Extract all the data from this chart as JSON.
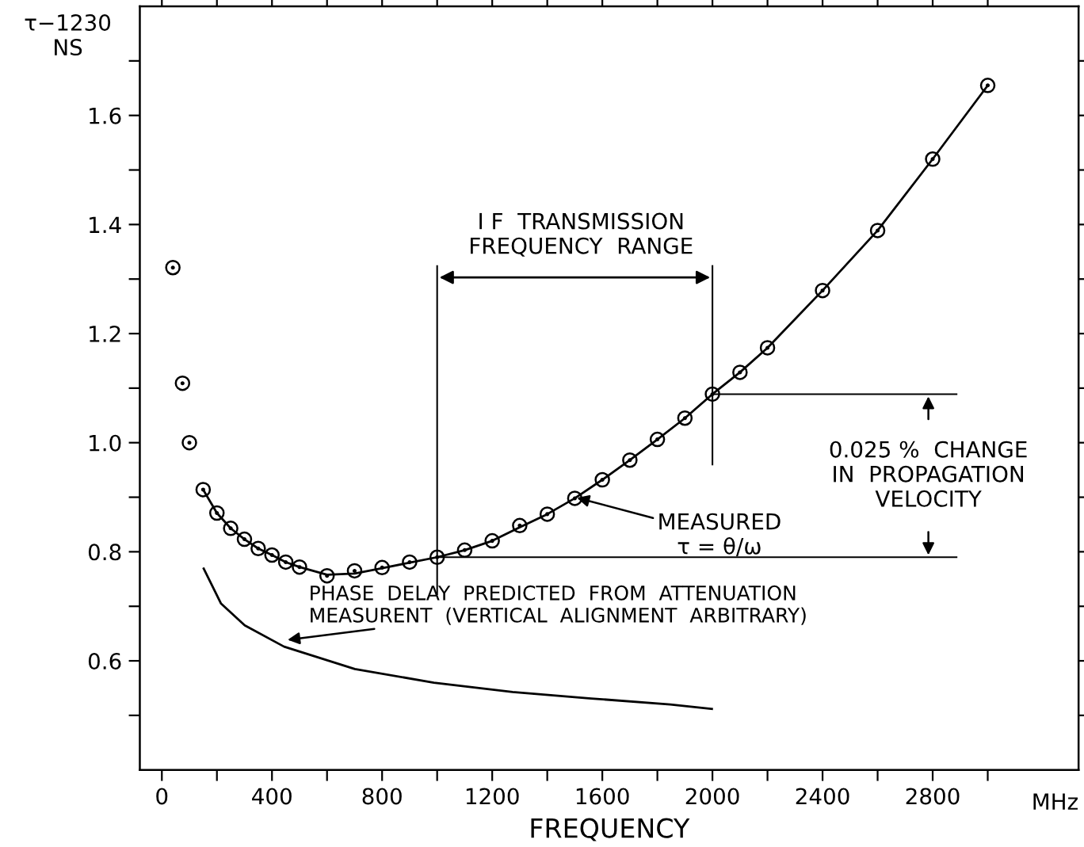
{
  "chart_data": {
    "type": "scatter",
    "xlabel": "FREQUENCY",
    "ylabel": "τ−1230\nNS",
    "xlim": [
      -80,
      3330
    ],
    "ylim": [
      0.4,
      1.8
    ],
    "xticks": [
      0,
      {
        "value": 200,
        "label": null
      },
      400,
      {
        "value": 600,
        "label": null
      },
      800,
      {
        "value": 1000,
        "label": null
      },
      1200,
      {
        "value": 1400,
        "label": null
      },
      1600,
      {
        "value": 1800,
        "label": null
      },
      2000,
      {
        "value": 2200,
        "label": null
      },
      2400,
      {
        "value": 2600,
        "label": null
      },
      2800,
      {
        "value": 3000,
        "label": null
      }
    ],
    "yticks": [
      {
        "value": 0.5,
        "label": null
      },
      0.6,
      {
        "value": 0.7,
        "label": null
      },
      0.8,
      {
        "value": 0.9,
        "label": null
      },
      {
        "value": 1.0,
        "label": "1.0"
      },
      {
        "value": 1.1,
        "label": null
      },
      1.2,
      {
        "value": 1.3,
        "label": null
      },
      1.4,
      {
        "value": 1.5,
        "label": null
      },
      1.6,
      {
        "value": 1.7,
        "label": null
      }
    ],
    "grid": false,
    "series": [
      {
        "color": "#000000",
        "marker": "circle",
        "x": [
          40,
          75,
          100,
          150,
          200,
          250,
          300,
          350,
          400,
          450,
          500,
          600,
          700,
          800,
          900,
          1000,
          1100,
          1200,
          1300,
          1400,
          1500,
          1600,
          1700,
          1800,
          1900,
          2000,
          2100,
          2200,
          2400,
          2600,
          2800,
          3000
        ],
        "values": [
          1.321,
          1.109,
          1.0,
          0.914,
          0.871,
          0.843,
          0.823,
          0.806,
          0.794,
          0.781,
          0.772,
          0.756,
          0.765,
          0.771,
          0.781,
          0.79,
          0.803,
          0.82,
          0.848,
          0.869,
          0.898,
          0.932,
          0.968,
          1.006,
          1.045,
          1.089,
          1.129,
          1.174,
          1.279,
          1.389,
          1.52,
          1.655
        ]
      },
      {
        "type": "line",
        "color": "#000000",
        "line_style": "solid",
        "x": [
          150,
          200,
          250,
          300,
          350,
          400,
          450,
          500,
          600,
          700,
          800,
          900,
          1000,
          1100,
          1200,
          1300,
          1400,
          1500,
          1600,
          1700,
          1800,
          1900,
          2000,
          2100,
          2200,
          2400,
          2600,
          2800,
          3000
        ],
        "values": [
          0.914,
          0.871,
          0.843,
          0.823,
          0.806,
          0.794,
          0.781,
          0.772,
          0.758,
          0.76,
          0.77,
          0.78,
          0.79,
          0.803,
          0.82,
          0.845,
          0.869,
          0.898,
          0.932,
          0.968,
          1.006,
          1.045,
          1.089,
          1.129,
          1.174,
          1.279,
          1.389,
          1.52,
          1.655
        ]
      },
      {
        "type": "line",
        "color": "#000000",
        "line_style": "solid",
        "x": [
          152,
          215,
          301,
          444,
          701,
          988,
          1274,
          1560,
          1847,
          1998
        ],
        "values": [
          0.769,
          0.705,
          0.665,
          0.626,
          0.585,
          0.56,
          0.543,
          0.531,
          0.52,
          0.512
        ]
      }
    ],
    "ref_lines": [
      {
        "axis": "x",
        "value": 1000
      },
      {
        "axis": "x",
        "value": 2000
      },
      {
        "axis": "y",
        "value": 0.79
      },
      {
        "axis": "y",
        "value": 1.089
      }
    ],
    "annotations": [
      {
        "text": "MEASURED\nτ = θ/ω",
        "x": 1500,
        "y": 0.9
      },
      "I F  TRANSMISSION\nFREQUENCY  RANGE",
      "0.025 %  CHANGE\nIN  PROPAGATION\nVELOCITY",
      "PHASE  DELAY  PREDICTED  FROM  ATTENUATION\nMEASURENT  (VERTICAL  ALIGNMENT  ARBITRARY)",
      "MHz"
    ]
  }
}
